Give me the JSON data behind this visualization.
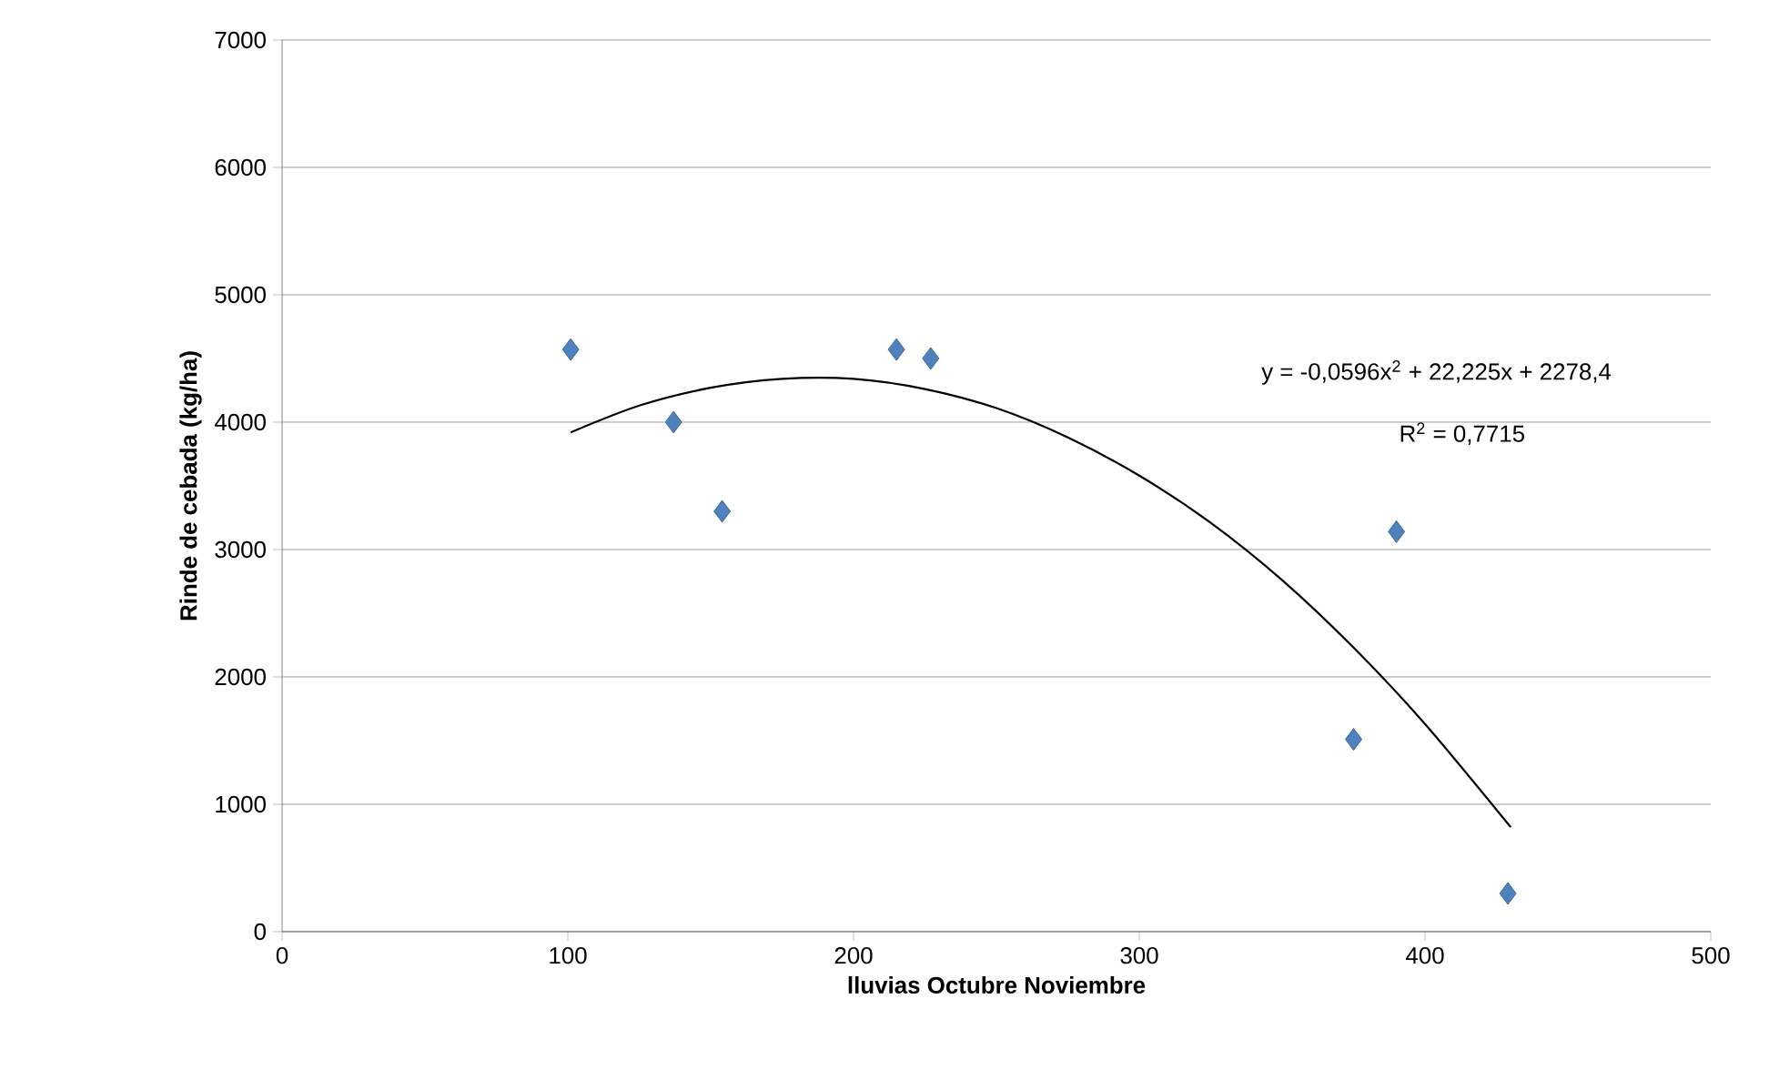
{
  "chart_data": {
    "type": "scatter",
    "xlabel": "lluvias Octubre Noviembre",
    "ylabel": "Rinde de cebada (kg/ha)",
    "xlim": [
      0,
      500
    ],
    "xticks": [
      0,
      100,
      200,
      300,
      400,
      500
    ],
    "ylim": [
      0,
      7000
    ],
    "yticks": [
      0,
      1000,
      2000,
      3000,
      4000,
      5000,
      6000,
      7000
    ],
    "grid": "y",
    "series": [
      {
        "marker": "diamond",
        "color": "#4f81bd",
        "x": [
          101,
          137,
          154,
          215,
          227,
          375,
          390,
          429
        ],
        "values": [
          4570,
          4000,
          3300,
          4570,
          4500,
          1510,
          3140,
          300
        ]
      },
      {
        "type": "line",
        "marker": "none",
        "color": "#000000",
        "x": [
          101,
          125,
          150,
          175,
          200,
          225,
          250,
          275,
          300,
          325,
          350,
          375,
          400,
          430
        ],
        "values": [
          3920,
          4130,
          4270,
          4340,
          4340,
          4260,
          4110,
          3880,
          3580,
          3210,
          2760,
          2230,
          1630,
          820
        ]
      }
    ],
    "annotations": [
      "y = -0,0596x$^{2}$ + 22,225x + 2278,4",
      "R$^{2}$ = 0,7715"
    ]
  }
}
